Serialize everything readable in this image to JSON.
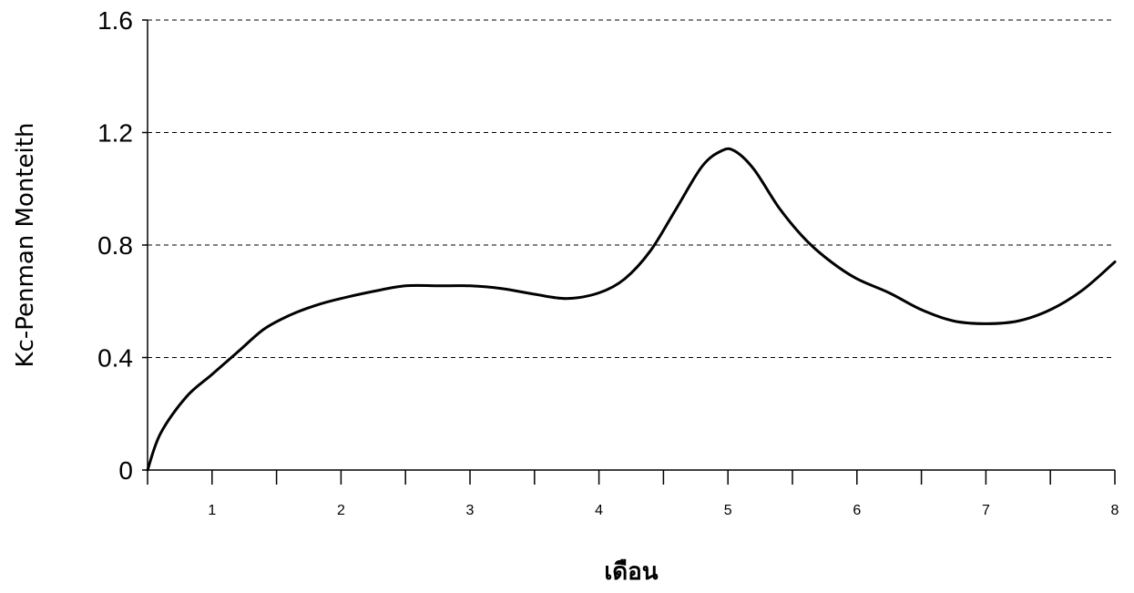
{
  "chart_data": {
    "type": "line",
    "title": "",
    "xlabel": "เดือน",
    "ylabel": "Kc-Penman Monteith",
    "xlim": [
      0.5,
      8
    ],
    "ylim": [
      0,
      1.6
    ],
    "x_ticks": [
      "1",
      "2",
      "3",
      "4",
      "5",
      "6",
      "7",
      "8"
    ],
    "y_ticks": [
      "0",
      "0.4",
      "0.8",
      "1.2",
      "1.6"
    ],
    "grid": "horizontal-dashed",
    "legend": "none",
    "line_color": "#000000",
    "series": [
      {
        "x": [
          0.5,
          0.6,
          0.8,
          1.0,
          1.2,
          1.4,
          1.6,
          1.8,
          2.0,
          2.25,
          2.5,
          2.75,
          3.0,
          3.25,
          3.5,
          3.75,
          4.0,
          4.2,
          4.4,
          4.6,
          4.8,
          4.95,
          5.05,
          5.2,
          5.4,
          5.6,
          5.8,
          6.0,
          6.25,
          6.5,
          6.75,
          7.0,
          7.25,
          7.5,
          7.75,
          8.0
        ],
        "y": [
          0.0,
          0.13,
          0.26,
          0.34,
          0.42,
          0.5,
          0.55,
          0.585,
          0.61,
          0.635,
          0.655,
          0.655,
          0.655,
          0.645,
          0.625,
          0.61,
          0.63,
          0.68,
          0.78,
          0.93,
          1.08,
          1.135,
          1.135,
          1.07,
          0.93,
          0.82,
          0.74,
          0.68,
          0.63,
          0.57,
          0.53,
          0.52,
          0.53,
          0.57,
          0.64,
          0.74
        ]
      }
    ]
  }
}
